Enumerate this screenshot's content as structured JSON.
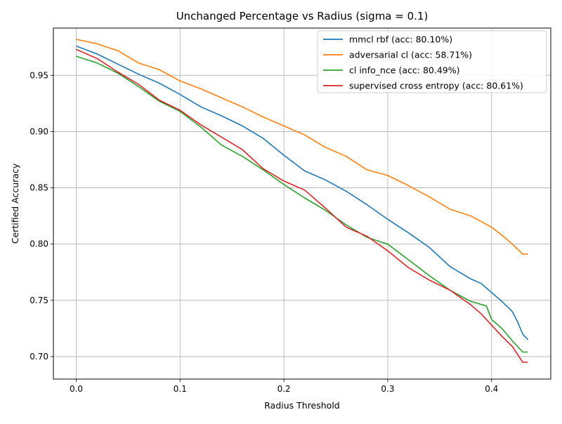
{
  "chart_data": {
    "type": "line",
    "title": "Unchanged Percentage vs Radius (sigma = 0.1)",
    "xlabel": "Radius Threshold",
    "ylabel": "Certified Accuracy",
    "xlim": [
      -0.022,
      0.457
    ],
    "ylim": [
      0.68,
      0.992
    ],
    "xticks": [
      0.0,
      0.1,
      0.2,
      0.3,
      0.4
    ],
    "xtick_labels": [
      "0.0",
      "0.1",
      "0.2",
      "0.3",
      "0.4"
    ],
    "yticks": [
      0.7,
      0.75,
      0.8,
      0.85,
      0.9,
      0.95
    ],
    "ytick_labels": [
      "0.70",
      "0.75",
      "0.80",
      "0.85",
      "0.90",
      "0.95"
    ],
    "grid": true,
    "legend_position": "top-right",
    "series": [
      {
        "name": "mmcl rbf (acc: 80.10%)",
        "color": "#1f77b4",
        "x": [
          0.0,
          0.02,
          0.04,
          0.06,
          0.08,
          0.1,
          0.12,
          0.14,
          0.16,
          0.18,
          0.2,
          0.22,
          0.24,
          0.26,
          0.28,
          0.3,
          0.32,
          0.34,
          0.36,
          0.38,
          0.39,
          0.4,
          0.41,
          0.42,
          0.425,
          0.43,
          0.435
        ],
        "y": [
          0.976,
          0.969,
          0.96,
          0.951,
          0.943,
          0.933,
          0.922,
          0.914,
          0.905,
          0.894,
          0.879,
          0.865,
          0.857,
          0.847,
          0.835,
          0.822,
          0.81,
          0.797,
          0.78,
          0.769,
          0.765,
          0.757,
          0.749,
          0.74,
          0.731,
          0.72,
          0.715
        ]
      },
      {
        "name": "adversarial cl (acc: 58.71%)",
        "color": "#ff7f0e",
        "x": [
          0.0,
          0.02,
          0.04,
          0.06,
          0.08,
          0.1,
          0.12,
          0.14,
          0.16,
          0.18,
          0.2,
          0.22,
          0.24,
          0.26,
          0.28,
          0.3,
          0.32,
          0.34,
          0.36,
          0.38,
          0.4,
          0.41,
          0.42,
          0.43,
          0.435
        ],
        "y": [
          0.982,
          0.978,
          0.972,
          0.961,
          0.955,
          0.945,
          0.938,
          0.93,
          0.922,
          0.913,
          0.905,
          0.897,
          0.886,
          0.878,
          0.866,
          0.861,
          0.852,
          0.842,
          0.831,
          0.825,
          0.815,
          0.808,
          0.8,
          0.791,
          0.791
        ]
      },
      {
        "name": "cl info_nce (acc: 80.49%)",
        "color": "#2ca02c",
        "x": [
          0.0,
          0.02,
          0.04,
          0.06,
          0.08,
          0.1,
          0.12,
          0.14,
          0.16,
          0.18,
          0.2,
          0.22,
          0.24,
          0.26,
          0.28,
          0.3,
          0.32,
          0.34,
          0.36,
          0.38,
          0.395,
          0.4,
          0.41,
          0.42,
          0.43,
          0.435
        ],
        "y": [
          0.967,
          0.961,
          0.952,
          0.94,
          0.927,
          0.918,
          0.904,
          0.888,
          0.878,
          0.866,
          0.853,
          0.841,
          0.83,
          0.817,
          0.806,
          0.8,
          0.786,
          0.772,
          0.759,
          0.749,
          0.745,
          0.733,
          0.725,
          0.714,
          0.704,
          0.704
        ]
      },
      {
        "name": "supervised cross entropy (acc: 80.61%)",
        "color": "#d62728",
        "x": [
          0.0,
          0.02,
          0.04,
          0.06,
          0.08,
          0.1,
          0.12,
          0.14,
          0.16,
          0.18,
          0.2,
          0.22,
          0.24,
          0.26,
          0.28,
          0.3,
          0.32,
          0.34,
          0.36,
          0.38,
          0.39,
          0.4,
          0.41,
          0.42,
          0.43,
          0.435
        ],
        "y": [
          0.973,
          0.965,
          0.953,
          0.942,
          0.928,
          0.919,
          0.906,
          0.895,
          0.884,
          0.867,
          0.856,
          0.848,
          0.832,
          0.815,
          0.807,
          0.794,
          0.779,
          0.768,
          0.759,
          0.746,
          0.738,
          0.728,
          0.718,
          0.709,
          0.695,
          0.695
        ]
      }
    ]
  }
}
